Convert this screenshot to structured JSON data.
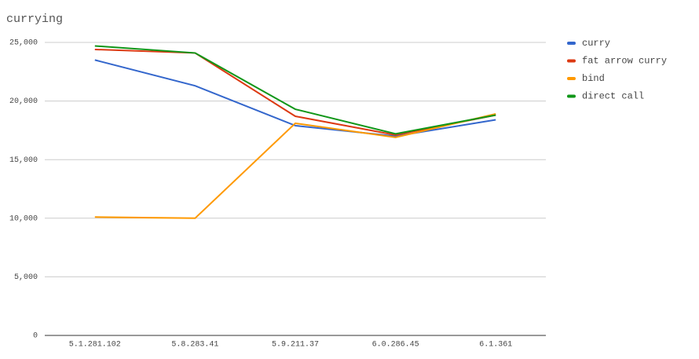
{
  "chart_data": {
    "type": "line",
    "title": "currying",
    "categories": [
      "5.1.281.102",
      "5.8.283.41",
      "5.9.211.37",
      "6.0.286.45",
      "6.1.361"
    ],
    "series": [
      {
        "name": "curry",
        "color": "#3366cc",
        "values": [
          23500,
          21300,
          17900,
          17000,
          18400
        ]
      },
      {
        "name": "fat arrow curry",
        "color": "#dc3912",
        "values": [
          24400,
          24100,
          18700,
          17100,
          18800
        ]
      },
      {
        "name": "bind",
        "color": "#ff9900",
        "values": [
          10100,
          10000,
          18100,
          16900,
          18900
        ]
      },
      {
        "name": "direct call",
        "color": "#109618",
        "values": [
          24700,
          24100,
          19300,
          17200,
          18800
        ]
      }
    ],
    "ylim": [
      0,
      25000
    ],
    "yticks": [
      0,
      {
        "value": 5000,
        "label": "5,000"
      },
      {
        "value": 10000,
        "label": "10,000"
      },
      {
        "value": 15000,
        "label": "15,000"
      },
      {
        "value": 20000,
        "label": "20,000"
      },
      {
        "value": 25000,
        "label": "25,000"
      }
    ],
    "grid": true,
    "legend": "right"
  }
}
